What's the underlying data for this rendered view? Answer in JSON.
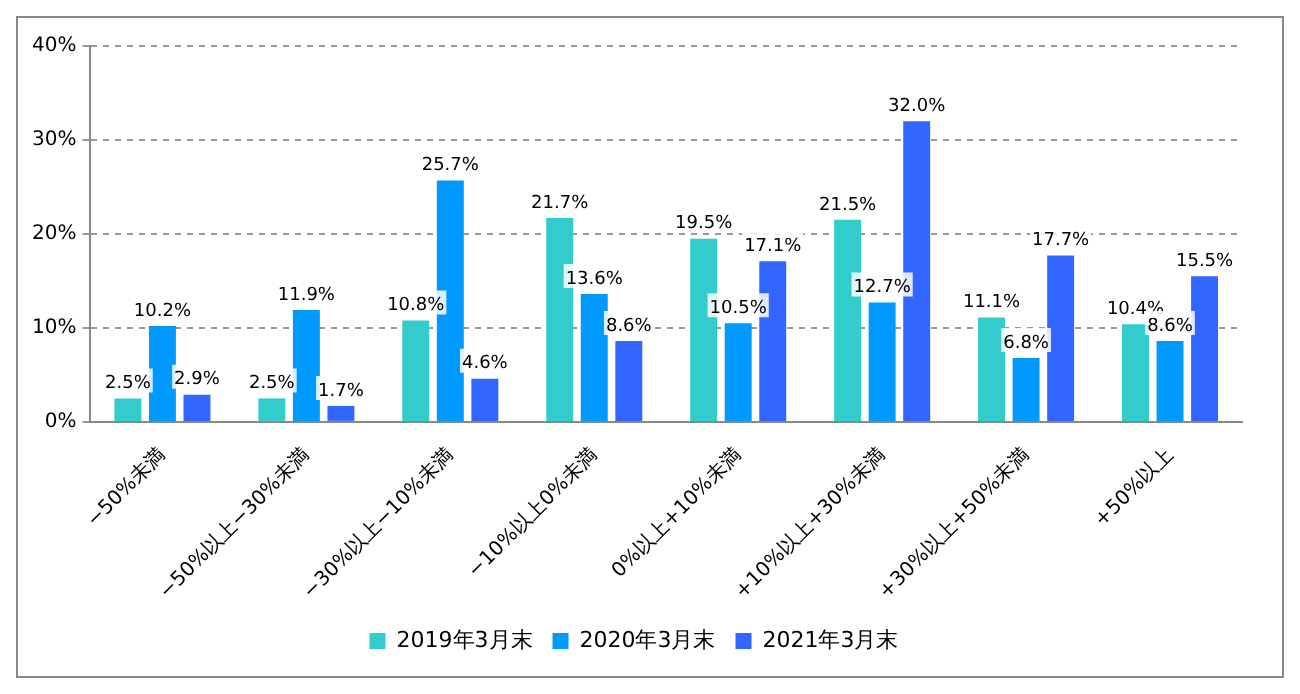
{
  "chart_data": {
    "type": "bar",
    "categories": [
      "−50%未満",
      "−50%以上−30%未満",
      "−30%以上−10%未満",
      "−10%以上0%未満",
      "0%以上+10%未満",
      "+10%以上+30%未満",
      "+30%以上+50%未満",
      "+50%以上"
    ],
    "series": [
      {
        "name": "2019年3月末",
        "color": "#33cccc",
        "values": [
          2.5,
          2.5,
          10.8,
          21.7,
          19.5,
          21.5,
          11.1,
          10.4
        ],
        "value_labels": [
          "2.5%",
          "2.5%",
          "10.8%",
          "21.7%",
          "19.5%",
          "21.5%",
          "11.1%",
          "10.4%"
        ]
      },
      {
        "name": "2020年3月末",
        "color": "#0099ff",
        "values": [
          10.2,
          11.9,
          25.7,
          13.6,
          10.5,
          12.7,
          6.8,
          8.6
        ],
        "value_labels": [
          "10.2%",
          "11.9%",
          "25.7%",
          "13.6%",
          "10.5%",
          "12.7%",
          "6.8%",
          "8.6%"
        ]
      },
      {
        "name": "2021年3月末",
        "color": "#3366ff",
        "values": [
          2.9,
          1.7,
          4.6,
          8.6,
          17.1,
          32.0,
          17.7,
          15.5
        ],
        "value_labels": [
          "2.9%",
          "1.7%",
          "4.6%",
          "8.6%",
          "17.1%",
          "32.0%",
          "17.7%",
          "15.5%"
        ]
      }
    ],
    "ylim": [
      0,
      40
    ],
    "yticks": [
      {
        "value": 0,
        "label": "0%"
      },
      {
        "value": 10,
        "label": "10%"
      },
      {
        "value": 20,
        "label": "20%"
      },
      {
        "value": 30,
        "label": "30%"
      },
      {
        "value": 40,
        "label": "40%"
      }
    ],
    "grid": "y",
    "legend": "bottom"
  }
}
